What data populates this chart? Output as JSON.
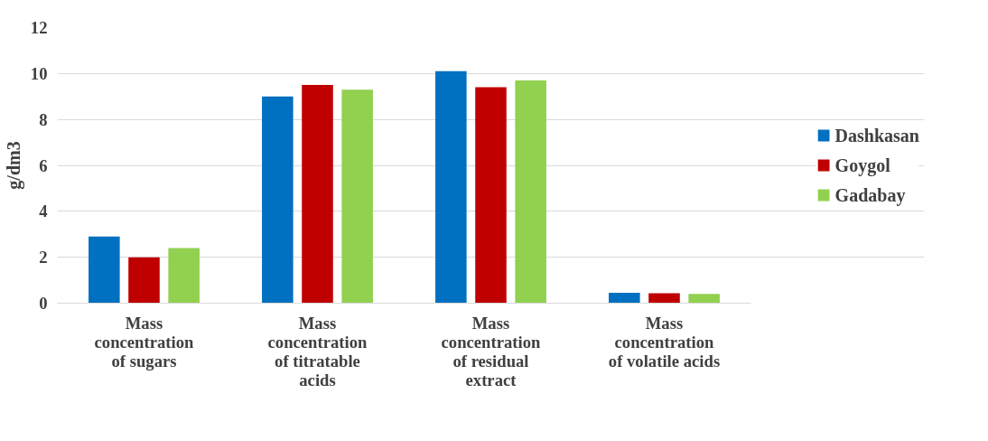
{
  "chart_data": {
    "type": "bar",
    "ylabel": "g/dm3",
    "categories": [
      "Mass\nconcentration\nof sugars",
      "Mass\nconcentration\nof titratable\nacids",
      "Mass\nconcentration\nof residual\nextract",
      "Mass\nconcentration\nof volatile acids"
    ],
    "series": [
      {
        "name": "Dashkasan",
        "color": "#0070c0",
        "values": [
          2.9,
          9.0,
          10.1,
          0.45
        ]
      },
      {
        "name": "Goygol",
        "color": "#c00000",
        "values": [
          2.0,
          9.5,
          9.4,
          0.43
        ]
      },
      {
        "name": "Gadabay",
        "color": "#92d050",
        "values": [
          2.4,
          9.3,
          9.7,
          0.4
        ]
      }
    ],
    "ylim": [
      0,
      12
    ],
    "yticks": [
      0,
      2,
      4,
      6,
      8,
      10,
      12
    ],
    "grid": "y",
    "legend": "right"
  }
}
